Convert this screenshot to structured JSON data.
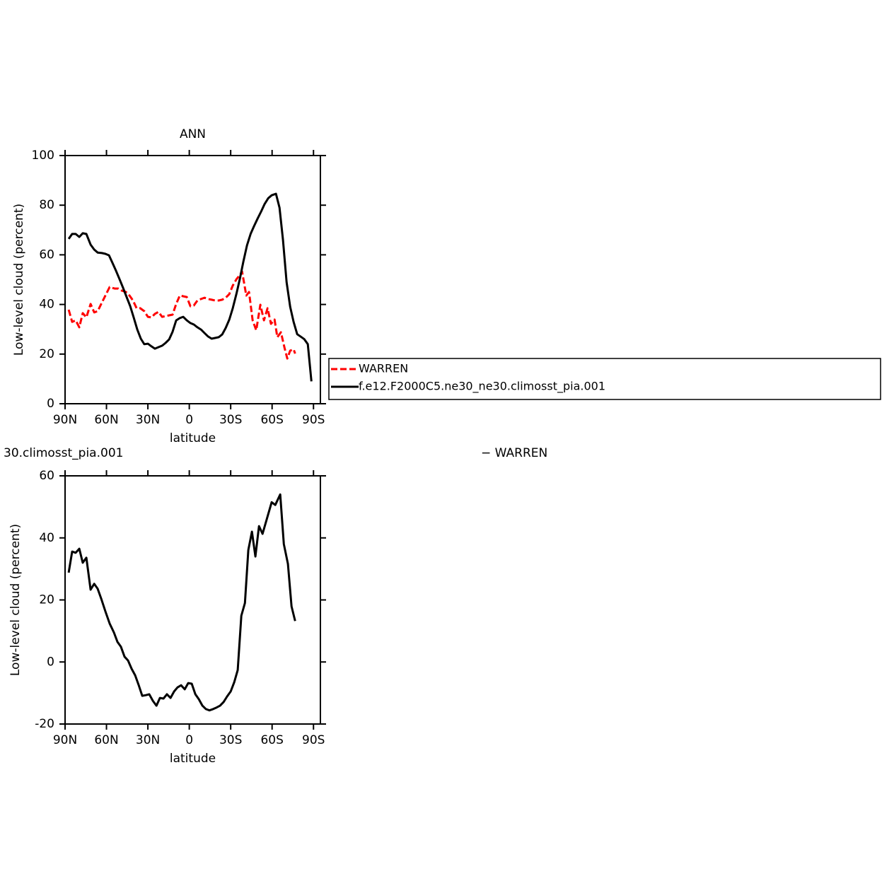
{
  "chart_data": [
    {
      "type": "line",
      "title": "ANN",
      "xlabel": "latitude",
      "ylabel": "Low-level cloud (percent)",
      "xlim": [
        90,
        -95
      ],
      "ylim": [
        0,
        100
      ],
      "xticks": [
        {
          "value": 90,
          "label": "90N"
        },
        {
          "value": 60,
          "label": "60N"
        },
        {
          "value": 30,
          "label": "30N"
        },
        0,
        {
          "value": -30,
          "label": "30S"
        },
        {
          "value": -60,
          "label": "60S"
        },
        {
          "value": -90,
          "label": "90S"
        }
      ],
      "yticks": [
        0,
        20,
        40,
        60,
        80,
        100
      ],
      "legend": "right",
      "series": [
        {
          "name": "WARREN",
          "color": "#ff0000",
          "line_style": "dashed",
          "x": [
            87.4,
            84.9,
            82.3,
            79.7,
            77.2,
            74.6,
            71.5,
            68.9,
            66.4,
            63.8,
            61.3,
            57.7,
            54.1,
            51.5,
            49.0,
            45.9,
            43.3,
            40.8,
            38.2,
            35.6,
            32.6,
            30.0,
            27.4,
            24.9,
            22.3,
            19.7,
            17.2,
            14.6,
            12.1,
            9.5,
            6.9,
            4.4,
            1.8,
            -0.8,
            -3.3,
            -5.9,
            -8.5,
            -11.0,
            -13.6,
            -16.2,
            -18.7,
            -21.3,
            -23.8,
            -26.4,
            -29.0,
            -31.5,
            -34.1,
            -36.7,
            -38.2,
            -39.7,
            -41.3,
            -43.3,
            -45.9,
            -48.5,
            -51.5,
            -54.1,
            -56.7,
            -59.2,
            -61.8,
            -63.8,
            -66.4,
            -69.0,
            -71.0,
            -73.1,
            -75.6,
            -76.7
          ],
          "values": [
            37.9,
            33.0,
            33.6,
            30.8,
            36.5,
            34.8,
            40.2,
            36.8,
            37.3,
            40.2,
            43.0,
            47.0,
            46.4,
            46.4,
            45.6,
            45.0,
            43.6,
            41.6,
            38.5,
            38.5,
            37.3,
            35.0,
            34.8,
            36.2,
            37.0,
            35.0,
            35.3,
            35.6,
            35.9,
            40.2,
            43.6,
            43.3,
            43.0,
            39.3,
            39.6,
            41.6,
            42.2,
            42.7,
            42.2,
            41.9,
            41.6,
            41.6,
            41.9,
            42.7,
            44.2,
            47.6,
            50.1,
            51.9,
            53.3,
            48.7,
            43.6,
            45.0,
            33.6,
            29.6,
            39.9,
            33.6,
            38.5,
            32.2,
            33.9,
            26.8,
            28.8,
            22.5,
            18.2,
            21.4,
            21.9,
            20.2
          ]
        },
        {
          "name": "f.e12.F2000C5.ne30_ne30.climosst_pia.001",
          "color": "#000000",
          "line_style": "solid",
          "x": [
            87.4,
            84.9,
            82.3,
            79.7,
            77.2,
            74.6,
            71.5,
            68.9,
            66.4,
            63.3,
            60.8,
            58.2,
            55.6,
            53.1,
            50.5,
            48.0,
            45.4,
            42.8,
            40.3,
            37.7,
            35.1,
            32.6,
            30.0,
            27.4,
            24.9,
            22.3,
            19.7,
            17.2,
            14.6,
            12.1,
            9.5,
            6.9,
            4.4,
            1.8,
            -0.8,
            -3.3,
            -5.9,
            -8.5,
            -11.0,
            -13.6,
            -16.2,
            -18.7,
            -21.3,
            -23.8,
            -26.4,
            -29.0,
            -31.5,
            -34.1,
            -36.7,
            -39.2,
            -41.8,
            -44.4,
            -46.9,
            -49.5,
            -52.1,
            -54.6,
            -57.2,
            -59.7,
            -62.8,
            -65.4,
            -67.9,
            -70.5,
            -73.1,
            -75.6,
            -78.2,
            -80.8,
            -83.3,
            -85.9,
            -88.5
          ],
          "values": [
            66.4,
            68.4,
            68.4,
            67.2,
            68.7,
            68.4,
            64.1,
            62.1,
            60.9,
            60.7,
            60.4,
            59.8,
            56.7,
            53.6,
            50.1,
            46.7,
            43.0,
            39.3,
            34.8,
            29.9,
            26.2,
            24.0,
            24.2,
            23.1,
            22.2,
            22.8,
            23.4,
            24.5,
            25.9,
            29.0,
            33.6,
            34.5,
            35.0,
            33.6,
            32.5,
            31.9,
            30.8,
            29.9,
            28.5,
            27.1,
            26.2,
            26.5,
            26.8,
            27.9,
            30.5,
            33.9,
            38.5,
            44.2,
            50.4,
            57.3,
            63.8,
            68.4,
            71.5,
            74.6,
            77.5,
            80.5,
            82.8,
            84.0,
            84.6,
            79.0,
            66.0,
            49.0,
            39.0,
            33.0,
            28.0,
            27.0,
            26.0,
            24.0,
            9.0
          ]
        }
      ]
    },
    {
      "type": "line",
      "title_left": "30.climosst_pia.001",
      "title_right": "− WARREN",
      "xlabel": "latitude",
      "ylabel": "Low-level cloud (percent)",
      "xlim": [
        90,
        -95
      ],
      "ylim": [
        -20,
        60
      ],
      "xticks": [
        {
          "value": 90,
          "label": "90N"
        },
        {
          "value": 60,
          "label": "60N"
        },
        {
          "value": 30,
          "label": "30N"
        },
        0,
        {
          "value": -30,
          "label": "30S"
        },
        {
          "value": -60,
          "label": "60S"
        },
        {
          "value": -90,
          "label": "90S"
        }
      ],
      "yticks": [
        -20,
        0,
        20,
        40,
        60
      ],
      "series": [
        {
          "color": "#000000",
          "line_style": "solid",
          "x": [
            87.4,
            84.9,
            82.3,
            79.7,
            77.2,
            74.6,
            71.5,
            68.9,
            66.4,
            63.8,
            60.8,
            57.7,
            54.6,
            52.1,
            49.5,
            46.9,
            44.4,
            41.8,
            39.2,
            36.7,
            34.1,
            31.5,
            29.0,
            26.4,
            23.8,
            21.3,
            18.7,
            16.2,
            13.6,
            11.0,
            8.5,
            5.9,
            3.3,
            0.8,
            -1.8,
            -4.4,
            -6.9,
            -9.5,
            -12.1,
            -14.6,
            -17.2,
            -19.7,
            -22.3,
            -24.9,
            -27.4,
            -30.0,
            -32.6,
            -35.1,
            -37.7,
            -40.3,
            -42.8,
            -45.4,
            -47.9,
            -50.5,
            -53.1,
            -59.7,
            -62.3,
            -65.9,
            -68.5,
            -71.5,
            -74.1,
            -76.7
          ],
          "values": [
            28.8,
            35.6,
            35.2,
            36.5,
            32.0,
            33.6,
            23.3,
            25.2,
            23.6,
            20.4,
            16.3,
            12.4,
            9.5,
            6.5,
            4.9,
            1.7,
            0.5,
            -2.2,
            -4.3,
            -7.4,
            -10.9,
            -10.7,
            -10.4,
            -12.5,
            -14.1,
            -11.6,
            -11.8,
            -10.4,
            -11.6,
            -9.5,
            -8.2,
            -7.5,
            -8.8,
            -6.8,
            -7.0,
            -10.4,
            -12.0,
            -14.1,
            -15.2,
            -15.6,
            -15.2,
            -14.7,
            -14.1,
            -12.9,
            -11.1,
            -9.5,
            -6.5,
            -2.6,
            14.9,
            19.0,
            36.1,
            42.0,
            34.0,
            43.8,
            41.3,
            51.5,
            50.6,
            54.0,
            38.0,
            31.6,
            17.9,
            13.2
          ]
        }
      ]
    }
  ]
}
